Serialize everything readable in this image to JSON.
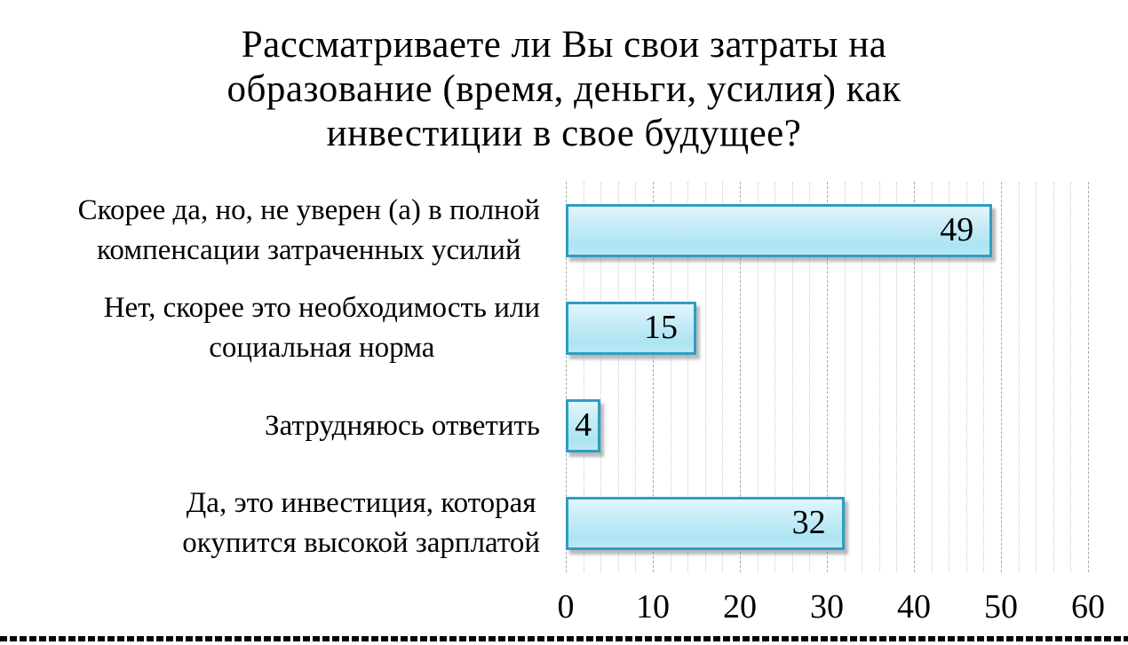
{
  "chart_data": {
    "type": "bar",
    "orientation": "horizontal",
    "title": "Рассматриваете ли Вы свои затраты на\nобразование (время, деньги, усилия) как\nинвестиции в свое будущее?",
    "categories": [
      "Скорее да, но, не уверен (а) в полной\nкомпенсации затраченных усилий",
      "Нет, скорее это необходимость или\nсоциальная норма",
      "Затрудняюсь ответить",
      "Да, это инвестиция, которая\nокупится высокой зарплатой"
    ],
    "values": [
      49,
      15,
      4,
      32
    ],
    "data_labels": [
      "49",
      "15",
      "4",
      "32"
    ],
    "xlabel": "",
    "ylabel": "",
    "xlim": [
      0,
      60
    ],
    "x_ticks": [
      "0",
      "10",
      "20",
      "30",
      "40",
      "50",
      "60"
    ],
    "grid": {
      "vertical_minor_step": 2,
      "vertical_major_step": 10,
      "horizontal": false
    },
    "legend": null,
    "style": {
      "bar_fill_light": "#D9F2FA",
      "bar_fill_dark": "#ACE4F3",
      "bar_border": "#2E9EC4",
      "bar_shadow_gray": "#828282",
      "gridline_minor": "#CCCCCC",
      "gridline_major": "#A8A8A8",
      "text_color": "#000000",
      "background": "#FFFFFF"
    }
  }
}
